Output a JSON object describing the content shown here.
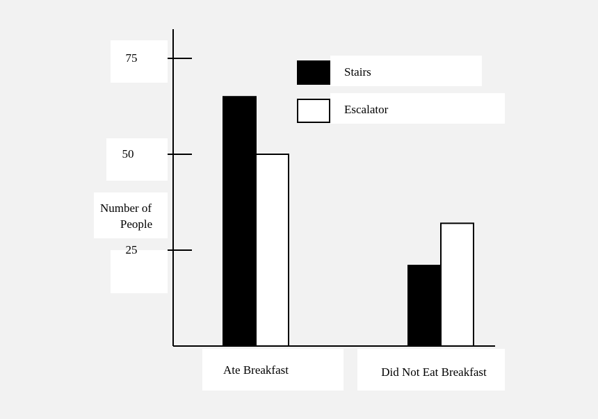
{
  "chart_data": {
    "type": "bar",
    "categories": [
      "Ate Breakfast",
      "Did Not Eat Breakfast"
    ],
    "series": [
      {
        "name": "Stairs",
        "values": [
          65,
          21
        ],
        "color": "#000000"
      },
      {
        "name": "Escalator",
        "values": [
          50,
          32
        ],
        "color": "#ffffff"
      }
    ],
    "yticks": [
      25,
      50,
      75
    ],
    "ylabel": [
      "Number of",
      "People"
    ],
    "ylim": [
      0,
      80
    ],
    "grid": false,
    "legend_position": "top-right"
  }
}
